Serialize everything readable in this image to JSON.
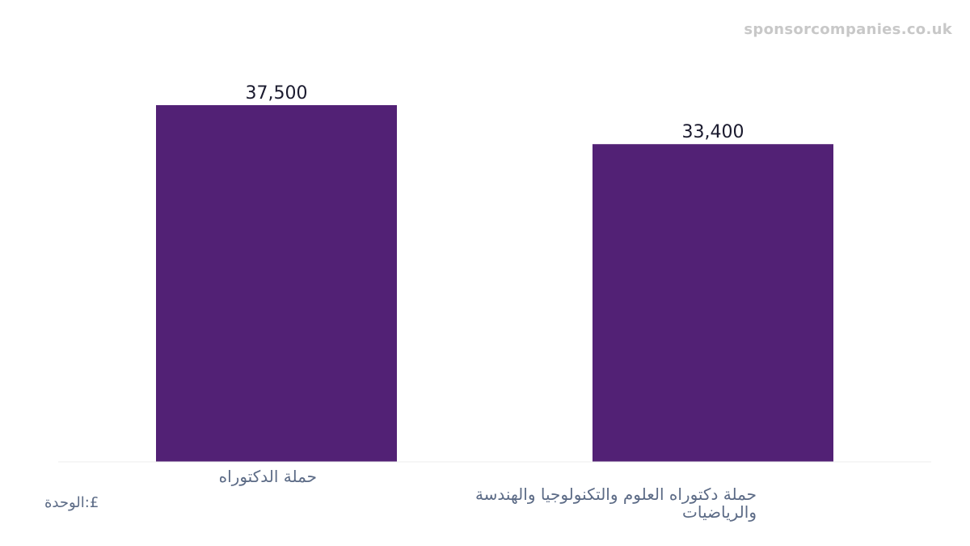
{
  "watermark": "sponsorcompanies.co.uk",
  "unit_label": "الوحدة:£",
  "colors": {
    "bar": "#522175",
    "value_label": "#1a1a2e",
    "category_label": "#5c6b86",
    "baseline": "#eeeeee",
    "watermark": "#c8c8c8"
  },
  "chart_data": {
    "type": "bar",
    "categories": [
      "حملة الدكتوراه",
      "حملة دكتوراه العلوم والتكنولوجيا والهندسة والرياضيات"
    ],
    "category_lines": [
      [
        "حملة الدكتوراه"
      ],
      [
        "حملة دكتوراه العلوم والتكنولوجيا والهندسة",
        "والرياضيات"
      ]
    ],
    "values": [
      37500,
      33400
    ],
    "value_labels": [
      "37,500",
      "33,400"
    ],
    "ylim": [
      0,
      37500
    ],
    "title": "",
    "xlabel": "",
    "ylabel": "",
    "grid": false,
    "legend": "none"
  }
}
